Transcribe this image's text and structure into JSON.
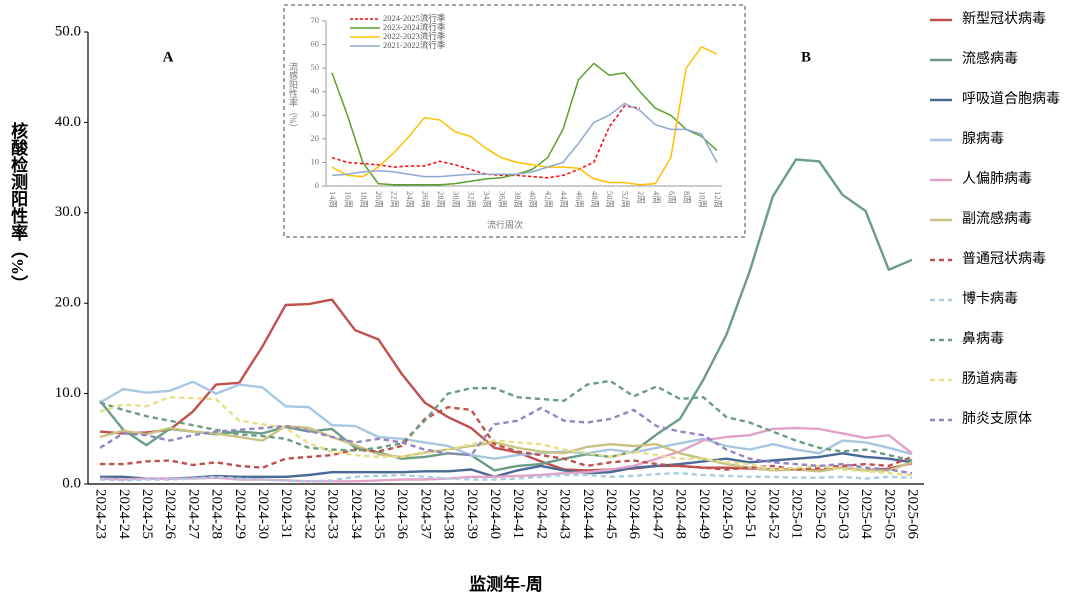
{
  "chart_data": [
    {
      "type": "line",
      "annotations": [
        "A",
        "B"
      ],
      "y_label": "核酸检测阳性率（%）",
      "x_label": "监测年-周",
      "categories": [
        "2024-23",
        "2024-24",
        "2024-25",
        "2024-26",
        "2024-27",
        "2024-28",
        "2024-29",
        "2024-30",
        "2024-31",
        "2024-32",
        "2024-33",
        "2024-34",
        "2024-35",
        "2024-36",
        "2024-37",
        "2024-38",
        "2024-39",
        "2024-40",
        "2024-41",
        "2024-42",
        "2024-43",
        "2024-44",
        "2024-45",
        "2024-46",
        "2024-47",
        "2024-48",
        "2024-49",
        "2024-50",
        "2024-51",
        "2024-52",
        "2025-01",
        "2025-02",
        "2025-03",
        "2025-04",
        "2025-05",
        "2025-06"
      ],
      "ylim": [
        0,
        50
      ],
      "yticks": [
        {
          "value": 0,
          "label": "0.0"
        },
        {
          "value": 10,
          "label": "10.0"
        },
        {
          "value": 20,
          "label": "20.0"
        },
        {
          "value": 30,
          "label": "30.0"
        },
        {
          "value": 40,
          "label": "40.0"
        },
        {
          "value": 50,
          "label": "50.0"
        }
      ],
      "series": [
        {
          "name": "新型冠状病毒",
          "color": "#c0504d",
          "dash": false,
          "values": [
            5.8,
            5.6,
            5.7,
            6.0,
            8.0,
            11.0,
            11.2,
            15.2,
            19.8,
            19.9,
            20.4,
            17.0,
            16.0,
            12.2,
            9.0,
            7.4,
            6.2,
            4.0,
            3.5,
            2.5,
            1.6,
            1.5,
            1.6,
            1.7,
            2.0,
            2.0,
            1.8,
            1.8,
            1.7,
            1.6,
            1.6,
            1.5,
            1.8,
            1.5,
            1.7,
            2.3
          ]
        },
        {
          "name": "流感病毒",
          "color": "#6b9c84",
          "dash": false,
          "values": [
            9.2,
            6.0,
            4.3,
            6.1,
            5.8,
            5.5,
            5.8,
            5.6,
            6.3,
            5.8,
            6.1,
            4.0,
            3.5,
            2.8,
            3.0,
            3.4,
            3.2,
            1.5,
            2.0,
            2.2,
            2.8,
            3.3,
            3.0,
            3.6,
            5.5,
            7.2,
            11.5,
            16.5,
            23.5,
            31.8,
            35.9,
            35.7,
            32.0,
            30.2,
            23.7,
            24.8
          ]
        },
        {
          "name": "呼吸道合胞病毒",
          "color": "#4a6a96",
          "dash": false,
          "values": [
            0.8,
            0.8,
            0.6,
            0.6,
            0.7,
            0.9,
            0.8,
            0.8,
            0.8,
            1.0,
            1.3,
            1.3,
            1.3,
            1.3,
            1.4,
            1.4,
            1.6,
            0.8,
            1.5,
            2.0,
            1.5,
            1.2,
            1.3,
            1.8,
            2.0,
            2.2,
            2.5,
            2.8,
            2.4,
            2.6,
            2.8,
            3.0,
            3.4,
            3.0,
            2.8,
            2.4
          ]
        },
        {
          "name": "腺病毒",
          "color": "#a8c6e2",
          "dash": false,
          "values": [
            9.0,
            10.5,
            10.1,
            10.3,
            11.3,
            10.0,
            11.0,
            10.7,
            8.6,
            8.5,
            6.5,
            6.4,
            5.2,
            5.0,
            4.6,
            4.2,
            3.2,
            2.8,
            3.2,
            3.4,
            3.6,
            3.4,
            3.8,
            3.5,
            4.0,
            4.5,
            5.0,
            4.2,
            3.8,
            4.4,
            3.8,
            3.4,
            4.8,
            4.6,
            4.0,
            3.3
          ]
        },
        {
          "name": "人偏肺病毒",
          "color": "#e2a2c8",
          "dash": false,
          "values": [
            0.6,
            0.5,
            0.6,
            0.6,
            0.6,
            0.7,
            0.5,
            0.5,
            0.4,
            0.3,
            0.3,
            0.3,
            0.4,
            0.5,
            0.5,
            0.6,
            0.8,
            0.8,
            0.9,
            1.0,
            1.2,
            1.3,
            1.6,
            2.0,
            2.8,
            3.6,
            4.8,
            5.2,
            5.4,
            6.1,
            6.2,
            6.1,
            5.6,
            5.1,
            5.4,
            3.4
          ]
        },
        {
          "name": "副流感病毒",
          "color": "#c9c283",
          "dash": false,
          "values": [
            5.2,
            5.9,
            5.5,
            6.2,
            5.8,
            5.6,
            5.2,
            4.8,
            6.4,
            6.2,
            5.2,
            4.3,
            3.3,
            3.0,
            3.5,
            3.8,
            4.2,
            4.6,
            4.0,
            3.6,
            3.4,
            4.1,
            4.4,
            4.2,
            4.4,
            3.4,
            2.8,
            2.2,
            1.8,
            1.5,
            1.6,
            1.4,
            1.8,
            1.5,
            1.5,
            2.4
          ]
        },
        {
          "name": "普通冠状病毒",
          "color": "#c0504d",
          "dash": true,
          "values": [
            2.2,
            2.2,
            2.5,
            2.6,
            2.1,
            2.4,
            2.0,
            1.8,
            2.8,
            3.0,
            3.2,
            3.8,
            3.6,
            4.2,
            7.2,
            8.5,
            8.2,
            4.4,
            3.6,
            3.2,
            2.8,
            2.0,
            2.4,
            2.6,
            2.2,
            2.0,
            1.8,
            1.6,
            1.8,
            2.0,
            1.6,
            1.8,
            2.0,
            2.2,
            2.0,
            3.0
          ]
        },
        {
          "name": "博卡病毒",
          "color": "#a8cce2",
          "dash": true,
          "values": [
            0.5,
            0.4,
            0.5,
            0.5,
            0.6,
            0.8,
            0.6,
            0.5,
            0.4,
            0.3,
            0.4,
            0.8,
            0.9,
            1.0,
            0.8,
            0.6,
            0.5,
            0.5,
            0.6,
            0.8,
            1.0,
            1.0,
            0.8,
            0.9,
            1.1,
            1.2,
            1.0,
            0.9,
            0.8,
            0.8,
            0.7,
            0.7,
            0.8,
            0.6,
            0.8,
            0.7
          ]
        },
        {
          "name": "鼻病毒",
          "color": "#6b9c84",
          "dash": true,
          "values": [
            9.0,
            8.2,
            7.5,
            7.0,
            6.5,
            6.0,
            5.5,
            5.3,
            5.0,
            4.0,
            3.8,
            3.7,
            4.0,
            4.5,
            7.0,
            10.0,
            10.6,
            10.6,
            9.6,
            9.4,
            9.2,
            11.0,
            11.4,
            9.7,
            10.8,
            9.4,
            9.6,
            7.4,
            6.8,
            5.8,
            4.8,
            4.0,
            3.6,
            3.8,
            3.2,
            2.6
          ]
        },
        {
          "name": "肠道病毒",
          "color": "#e6df86",
          "dash": true,
          "values": [
            8.0,
            8.8,
            8.6,
            9.6,
            9.5,
            9.4,
            7.0,
            6.6,
            6.2,
            4.5,
            3.6,
            3.2,
            3.0,
            3.0,
            3.4,
            3.8,
            4.4,
            4.8,
            4.6,
            4.4,
            3.8,
            3.4,
            3.0,
            3.6,
            3.2,
            2.8,
            2.8,
            2.4,
            2.2,
            1.6,
            1.8,
            2.0,
            1.6,
            1.4,
            1.2,
            1.0
          ]
        },
        {
          "name": "肺炎支原体",
          "color": "#9484c4",
          "dash": true,
          "values": [
            4.0,
            5.6,
            5.4,
            4.8,
            5.4,
            5.8,
            6.0,
            6.2,
            6.4,
            5.9,
            5.2,
            4.6,
            5.0,
            4.6,
            3.8,
            3.4,
            3.2,
            6.6,
            7.0,
            8.4,
            7.0,
            6.8,
            7.2,
            8.2,
            6.4,
            5.8,
            5.4,
            3.8,
            2.8,
            2.4,
            2.2,
            2.0,
            2.2,
            1.8,
            1.6,
            1.2
          ]
        }
      ]
    },
    {
      "type": "line",
      "y_label": "流感阳性率（%）",
      "x_label": "流行周次",
      "categories": [
        "14周",
        "16周",
        "18周",
        "20周",
        "22周",
        "24周",
        "26周",
        "28周",
        "30周",
        "32周",
        "34周",
        "36周",
        "38周",
        "40周",
        "42周",
        "44周",
        "46周",
        "48周",
        "50周",
        "52周",
        "2周",
        "4周",
        "6周",
        "8周",
        "10周",
        "12周"
      ],
      "ylim": [
        0,
        70
      ],
      "yticks": [
        0,
        10,
        20,
        30,
        40,
        50,
        60,
        70
      ],
      "series": [
        {
          "name": "2024-2025流行季",
          "color": "#ff0000",
          "dash": true,
          "values": [
            12,
            10,
            9.5,
            9,
            8,
            8.5,
            8.5,
            10.5,
            9,
            7,
            5,
            4.5,
            4.5,
            4,
            3.5,
            4.5,
            7,
            10,
            25,
            34,
            33,
            null,
            null,
            null,
            null,
            null
          ]
        },
        {
          "name": "2023-2024流行季",
          "color": "#5aa02c",
          "dash": false,
          "values": [
            48,
            30,
            10,
            1,
            0.5,
            0.5,
            0.5,
            0.5,
            1,
            2,
            3,
            3.5,
            5,
            7,
            12,
            24,
            45,
            52,
            47,
            48,
            40,
            33,
            30,
            24,
            21,
            15
          ]
        },
        {
          "name": "2022-2023流行季",
          "color": "#ffc000",
          "dash": false,
          "values": [
            8,
            4.5,
            4,
            8,
            14,
            21,
            29,
            28,
            23,
            21,
            16,
            12,
            10,
            9,
            8,
            8,
            7.5,
            3,
            1.5,
            1.5,
            0.5,
            1,
            12,
            50,
            59,
            56
          ]
        },
        {
          "name": "2021-2022流行季",
          "color": "#8fa8d4",
          "dash": false,
          "values": [
            4.5,
            5,
            6,
            6.5,
            6,
            5,
            4,
            4,
            4.5,
            5,
            5,
            5,
            5,
            6,
            8,
            10,
            18,
            27,
            30,
            35,
            32,
            26,
            24,
            24,
            22,
            10
          ]
        }
      ]
    }
  ]
}
